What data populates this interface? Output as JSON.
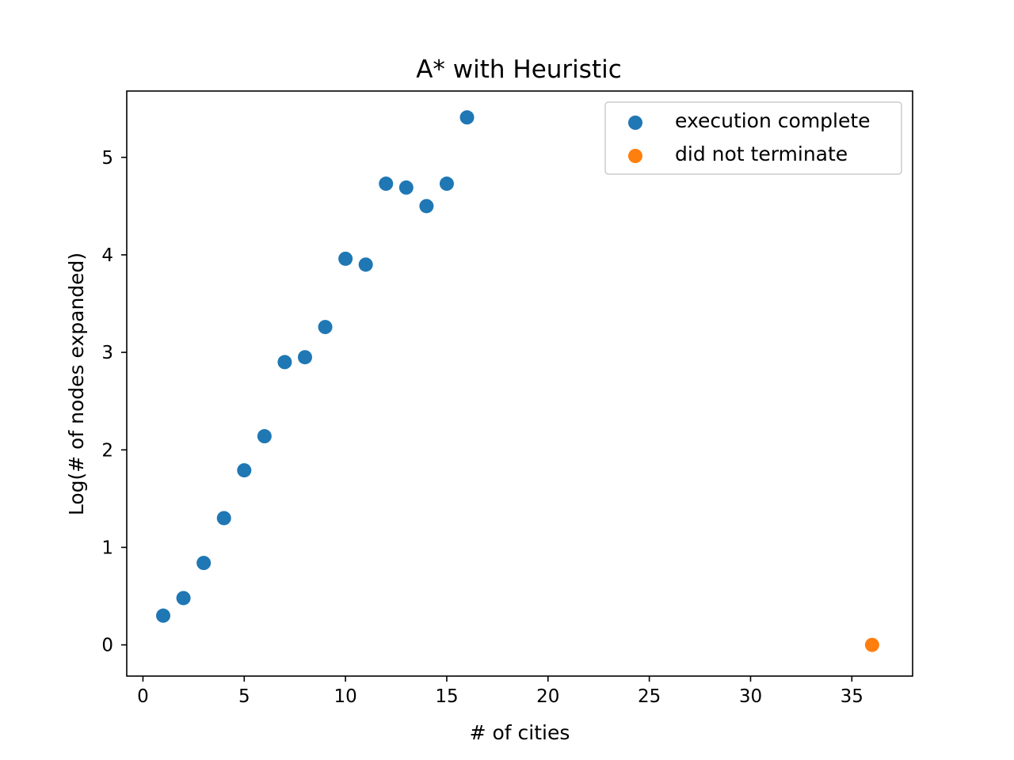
{
  "chart_data": {
    "type": "scatter",
    "title": "A* with Heuristic",
    "xlabel": "# of cities",
    "ylabel": "Log(# of nodes expanded)",
    "xlim": [
      -0.8,
      38
    ],
    "ylim": [
      -0.32,
      5.68
    ],
    "xticks": [
      0,
      5,
      10,
      15,
      20,
      25,
      30,
      35
    ],
    "yticks": [
      0,
      1,
      2,
      3,
      4,
      5
    ],
    "grid": false,
    "legend": "top-right",
    "series": [
      {
        "name": "execution complete",
        "color": "#1f77b4",
        "x": [
          1,
          2,
          3,
          4,
          5,
          6,
          7,
          8,
          9,
          10,
          11,
          12,
          13,
          14,
          15,
          16
        ],
        "y": [
          0.3,
          0.48,
          0.84,
          1.3,
          1.79,
          2.14,
          2.9,
          2.95,
          3.26,
          3.96,
          3.9,
          4.73,
          4.69,
          4.5,
          4.73,
          5.41
        ]
      },
      {
        "name": "did not terminate",
        "color": "#ff7f0e",
        "x": [
          36
        ],
        "y": [
          0
        ]
      }
    ]
  }
}
